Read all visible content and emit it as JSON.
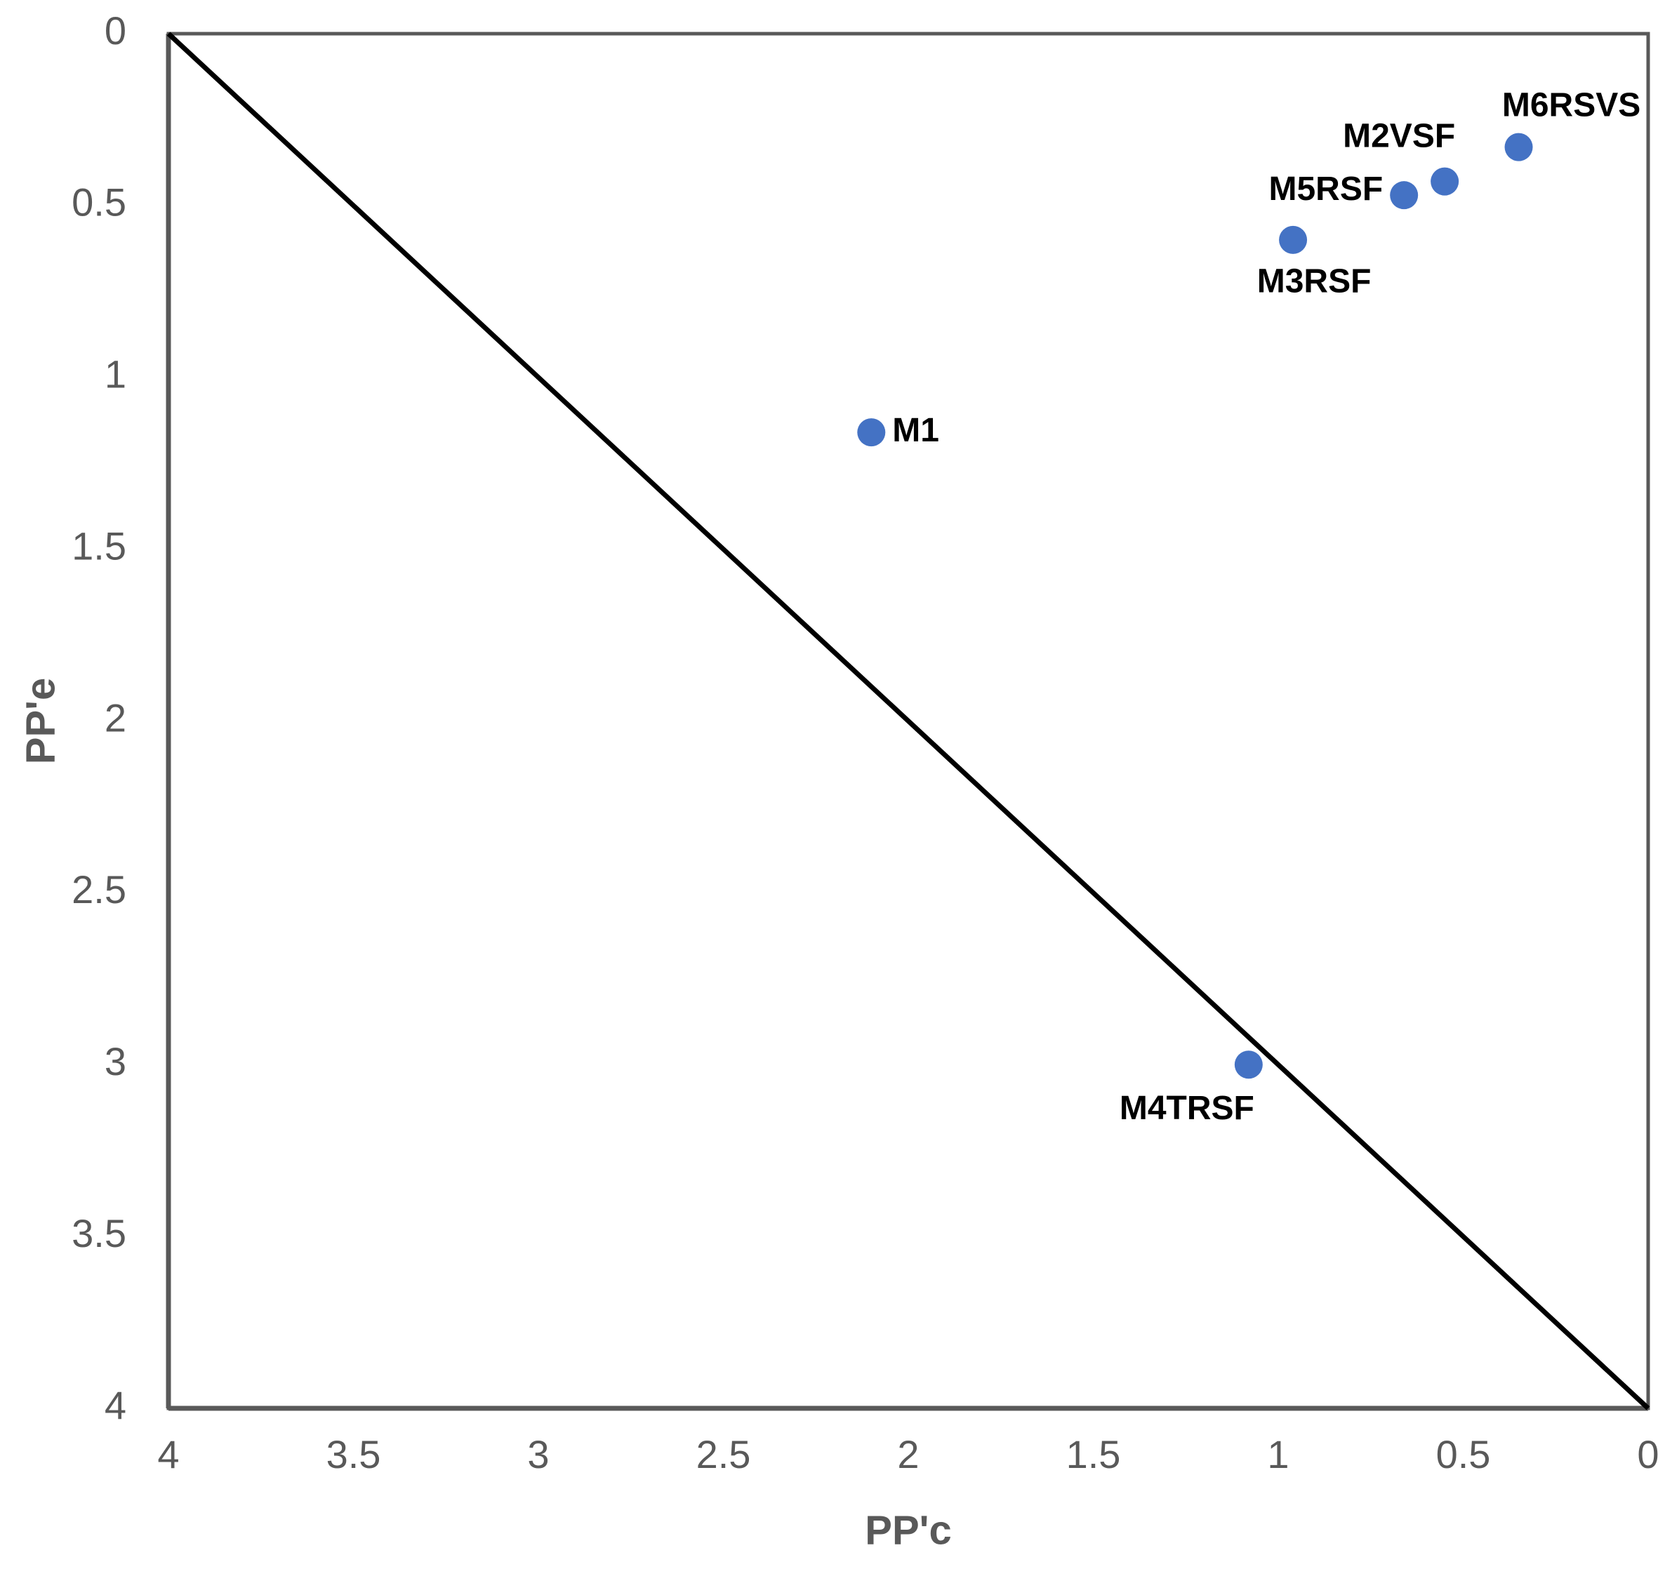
{
  "chart_data": {
    "type": "scatter",
    "title": "",
    "xlabel": "PP'c",
    "ylabel": "PP'e",
    "xlim": [
      4,
      0
    ],
    "ylim": [
      0,
      4
    ],
    "x_reversed": true,
    "y_reversed": true,
    "xticks": [
      4,
      3.5,
      3,
      2.5,
      2,
      1.5,
      1,
      0.5,
      0
    ],
    "xtick_labels": [
      "4",
      "3.5",
      "3",
      "2.5",
      "2",
      "1.5",
      "1",
      "0.5",
      "0"
    ],
    "yticks": [
      0,
      0.5,
      1,
      1.5,
      2,
      2.5,
      3,
      3.5,
      4
    ],
    "ytick_labels": [
      "0",
      "0.5",
      "1",
      "1.5",
      "2",
      "2.5",
      "3",
      "3.5",
      "4"
    ],
    "grid": false,
    "legend": "none",
    "points": [
      {
        "label": "M1",
        "x": 2.1,
        "y": 1.16,
        "label_pos": "right"
      },
      {
        "label": "M2VSF",
        "x": 0.55,
        "y": 0.43,
        "label_pos": "above-left"
      },
      {
        "label": "M3RSF",
        "x": 0.96,
        "y": 0.6,
        "label_pos": "below"
      },
      {
        "label": "M4TRSF",
        "x": 1.08,
        "y": 3.0,
        "label_pos": "below-left"
      },
      {
        "label": "M5RSF",
        "x": 0.66,
        "y": 0.47,
        "label_pos": "left"
      },
      {
        "label": "M6RSVS",
        "x": 0.35,
        "y": 0.33,
        "label_pos": "above-right"
      }
    ],
    "reference_line": {
      "from": [
        4,
        0
      ],
      "to": [
        0,
        4
      ],
      "color": "#000000"
    },
    "marker_color": "#4472C4",
    "axis_color": "#595959"
  }
}
